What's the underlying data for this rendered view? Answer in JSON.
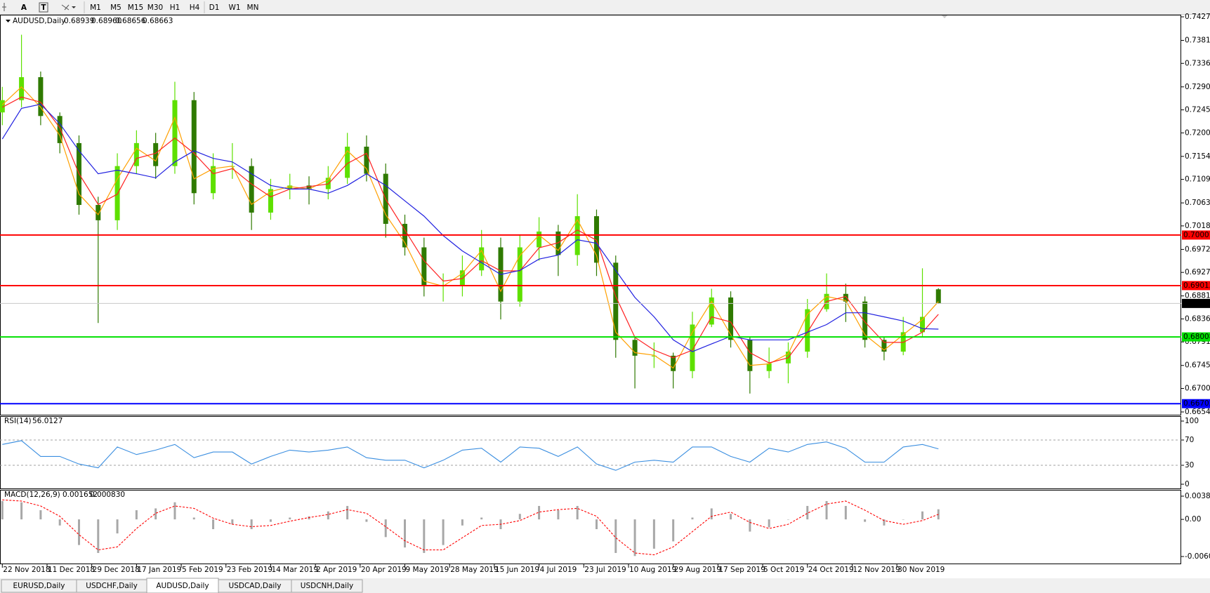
{
  "toolbar": {
    "tools": [
      "A",
      "T"
    ],
    "timeframes": [
      "M1",
      "M5",
      "M15",
      "M30",
      "H1",
      "H4",
      "D1",
      "W1",
      "MN"
    ]
  },
  "chart_data": [
    {
      "type": "candlestick",
      "title": "AUDUSD,Daily",
      "header_values": [
        "0.68939",
        "0.68960",
        "0.68656",
        "0.68663"
      ],
      "x": [
        0,
        6,
        12,
        18,
        24,
        30,
        36,
        42,
        48,
        54,
        60,
        66,
        72,
        78,
        84,
        90,
        96,
        102,
        108,
        114,
        120,
        126,
        132,
        138,
        144,
        150,
        156,
        162,
        168,
        174,
        180,
        186,
        192,
        198,
        204,
        210,
        216,
        222,
        228,
        234,
        240,
        246,
        252,
        258,
        264,
        270,
        276,
        282,
        288,
        293
      ],
      "xlim": [
        0,
        369
      ],
      "xticks": [
        {
          "value": 0,
          "label": "22 Nov 2018"
        },
        {
          "value": 14,
          "label": "11 Dec 2018"
        },
        {
          "value": 28,
          "label": "29 Dec 2018"
        },
        {
          "value": 42,
          "label": "17 Jan 2019"
        },
        {
          "value": 56,
          "label": "5 Feb 2019"
        },
        {
          "value": 70,
          "label": "23 Feb 2019"
        },
        {
          "value": 84,
          "label": "14 Mar 2019"
        },
        {
          "value": 98,
          "label": "2 Apr 2019"
        },
        {
          "value": 112,
          "label": "20 Apr 2019"
        },
        {
          "value": 126,
          "label": "9 May 2019"
        },
        {
          "value": 140,
          "label": "28 May 2019"
        },
        {
          "value": 154,
          "label": "15 Jun 2019"
        },
        {
          "value": 168,
          "label": "4 Jul 2019"
        },
        {
          "value": 182,
          "label": "23 Jul 2019"
        },
        {
          "value": 196,
          "label": "10 Aug 2019"
        },
        {
          "value": 210,
          "label": "29 Aug 2019"
        },
        {
          "value": 224,
          "label": "17 Sep 2019"
        },
        {
          "value": 238,
          "label": "5 Oct 2019"
        },
        {
          "value": 252,
          "label": "24 Oct 2019"
        },
        {
          "value": 266,
          "label": "12 Nov 2019"
        },
        {
          "value": 280,
          "label": "30 Nov 2019"
        }
      ],
      "open": [
        0.724,
        0.7264,
        0.7309,
        0.7233,
        0.718,
        0.7059,
        0.7029,
        0.7135,
        0.718,
        0.7135,
        0.7264,
        0.7082,
        0.7135,
        0.7135,
        0.7044,
        0.709,
        0.7097,
        0.709,
        0.7112,
        0.7173,
        0.712,
        0.7022,
        0.6976,
        0.6901,
        0.6901,
        0.6931,
        0.6976,
        0.687,
        0.6976,
        0.7007,
        0.6961,
        0.7037,
        0.6946,
        0.6795,
        0.6764,
        0.6764,
        0.6734,
        0.6825,
        0.6878,
        0.6795,
        0.6734,
        0.6749,
        0.6772,
        0.6855,
        0.6885,
        0.687,
        0.6795,
        0.6772,
        0.681,
        0.68939
      ],
      "high": [
        0.729,
        0.7392,
        0.732,
        0.724,
        0.7195,
        0.7075,
        0.716,
        0.7205,
        0.72,
        0.73,
        0.728,
        0.716,
        0.718,
        0.715,
        0.711,
        0.712,
        0.7115,
        0.7135,
        0.72,
        0.7195,
        0.714,
        0.704,
        0.6995,
        0.6925,
        0.696,
        0.701,
        0.6995,
        0.7,
        0.7035,
        0.702,
        0.708,
        0.705,
        0.696,
        0.68,
        0.679,
        0.677,
        0.685,
        0.6895,
        0.689,
        0.68,
        0.678,
        0.679,
        0.6875,
        0.6925,
        0.6905,
        0.688,
        0.68,
        0.684,
        0.6935,
        0.6896
      ],
      "low": [
        0.7215,
        0.725,
        0.7215,
        0.716,
        0.704,
        0.6828,
        0.701,
        0.712,
        0.711,
        0.712,
        0.706,
        0.707,
        0.711,
        0.701,
        0.703,
        0.707,
        0.706,
        0.707,
        0.71,
        0.7105,
        0.6995,
        0.696,
        0.688,
        0.687,
        0.688,
        0.692,
        0.6835,
        0.686,
        0.695,
        0.692,
        0.694,
        0.692,
        0.676,
        0.67,
        0.674,
        0.67,
        0.672,
        0.682,
        0.678,
        0.669,
        0.672,
        0.671,
        0.676,
        0.685,
        0.683,
        0.678,
        0.6755,
        0.6765,
        0.68,
        0.68656
      ],
      "close": [
        0.7264,
        0.7309,
        0.7233,
        0.718,
        0.7059,
        0.7029,
        0.7135,
        0.718,
        0.7135,
        0.7264,
        0.7082,
        0.7135,
        0.7135,
        0.7044,
        0.709,
        0.7097,
        0.709,
        0.7112,
        0.7173,
        0.712,
        0.7022,
        0.6976,
        0.6901,
        0.6901,
        0.6931,
        0.6976,
        0.687,
        0.6976,
        0.7007,
        0.6961,
        0.7037,
        0.6946,
        0.6795,
        0.6764,
        0.6764,
        0.6734,
        0.6825,
        0.6878,
        0.6795,
        0.6734,
        0.6749,
        0.6772,
        0.6855,
        0.6885,
        0.687,
        0.6795,
        0.6772,
        0.681,
        0.684,
        0.68663
      ],
      "up_color": "#5ee000",
      "down_color": "#2f7a00",
      "series": [
        {
          "color": "#ffa000",
          "values": [
            0.7255,
            0.729,
            0.725,
            0.7195,
            0.708,
            0.704,
            0.711,
            0.717,
            0.7145,
            0.723,
            0.711,
            0.713,
            0.7135,
            0.706,
            0.7085,
            0.7095,
            0.709,
            0.7108,
            0.7165,
            0.713,
            0.704,
            0.6985,
            0.691,
            0.69,
            0.6925,
            0.697,
            0.689,
            0.696,
            0.7,
            0.697,
            0.703,
            0.696,
            0.681,
            0.677,
            0.6765,
            0.674,
            0.681,
            0.687,
            0.6805,
            0.6745,
            0.6748,
            0.6768,
            0.6845,
            0.688,
            0.6872,
            0.6805,
            0.6775,
            0.6805,
            0.6835,
            0.687
          ]
        },
        {
          "color": "#ff2020",
          "values": [
            0.725,
            0.727,
            0.726,
            0.721,
            0.712,
            0.706,
            0.708,
            0.715,
            0.716,
            0.719,
            0.716,
            0.712,
            0.713,
            0.71,
            0.7075,
            0.709,
            0.7095,
            0.71,
            0.714,
            0.716,
            0.707,
            0.701,
            0.695,
            0.691,
            0.6915,
            0.695,
            0.693,
            0.693,
            0.6975,
            0.6985,
            0.701,
            0.699,
            0.688,
            0.68,
            0.6775,
            0.676,
            0.6775,
            0.684,
            0.683,
            0.677,
            0.675,
            0.676,
            0.681,
            0.687,
            0.688,
            0.683,
            0.679,
            0.679,
            0.681,
            0.6845
          ]
        },
        {
          "color": "#2020e0",
          "values": [
            0.7188,
            0.7248,
            0.7256,
            0.7218,
            0.7165,
            0.712,
            0.7127,
            0.712,
            0.7112,
            0.7143,
            0.7165,
            0.715,
            0.7143,
            0.712,
            0.7097,
            0.709,
            0.709,
            0.7082,
            0.7097,
            0.712,
            0.7097,
            0.7067,
            0.7037,
            0.6999,
            0.6969,
            0.6946,
            0.6923,
            0.6931,
            0.6953,
            0.6961,
            0.6991,
            0.6984,
            0.6931,
            0.6878,
            0.684,
            0.6795,
            0.6772,
            0.6787,
            0.6802,
            0.6795,
            0.6795,
            0.6795,
            0.681,
            0.6825,
            0.6848,
            0.6848,
            0.684,
            0.6832,
            0.6817,
            0.6816
          ]
        }
      ],
      "ylim": [
        0.6654,
        0.7427
      ],
      "yticks": [
        {
          "value": 0.7427,
          "label": "0.74270"
        },
        {
          "value": 0.7381,
          "label": "0.73810"
        },
        {
          "value": 0.7336,
          "label": "0.73360"
        },
        {
          "value": 0.729,
          "label": "0.72900"
        },
        {
          "value": 0.7245,
          "label": "0.72450"
        },
        {
          "value": 0.72,
          "label": "0.72000"
        },
        {
          "value": 0.7154,
          "label": "0.71540"
        },
        {
          "value": 0.7109,
          "label": "0.71090"
        },
        {
          "value": 0.7063,
          "label": "0.70630"
        },
        {
          "value": 0.7018,
          "label": "0.70180"
        },
        {
          "value": 0.6972,
          "label": "0.69720"
        },
        {
          "value": 0.6927,
          "label": "0.69270"
        },
        {
          "value": 0.6881,
          "label": "0.68810"
        },
        {
          "value": 0.6836,
          "label": "0.68360"
        },
        {
          "value": 0.6791,
          "label": "0.67910"
        },
        {
          "value": 0.6745,
          "label": "0.67450"
        },
        {
          "value": 0.67,
          "label": "0.67000"
        },
        {
          "value": 0.6654,
          "label": "0.66540"
        }
      ],
      "grid": false,
      "hlines": [
        {
          "value": 0.70001,
          "color": "#ff0000",
          "label_color": "#ff0000"
        },
        {
          "value": 0.69012,
          "color": "#ff0000",
          "label_color": "#ff0000"
        },
        {
          "value": 0.68663,
          "color": "#c8c8c8",
          "label_color": "#000000"
        },
        {
          "value": 0.68008,
          "color": "#00e000",
          "label_color": "#00e000"
        },
        {
          "value": 0.66702,
          "color": "#0000ff",
          "label_color": "#0000ff"
        }
      ]
    },
    {
      "type": "line",
      "title": "RSI(14)",
      "color": "#3a8ee0",
      "values": [
        63,
        69,
        44,
        44,
        32,
        26,
        59,
        47,
        54,
        63,
        42,
        51,
        51,
        32,
        44,
        54,
        51,
        54,
        59,
        42,
        38,
        38,
        26,
        38,
        54,
        57,
        35,
        59,
        57,
        44,
        59,
        32,
        22,
        35,
        38,
        35,
        59,
        59,
        44,
        35,
        57,
        51,
        63,
        67,
        57,
        35,
        35,
        59,
        63,
        56.0127
      ],
      "ylim": [
        0,
        100
      ],
      "yticks": [
        0,
        30,
        70,
        100
      ]
    },
    {
      "type": "macd",
      "title": "MACD(12,26,9)",
      "title_values": [
        "0.001652",
        "0.000830"
      ],
      "hist_color": "#a8a8a8",
      "signal_color": "#ff0000",
      "values": [
        0.003,
        0.0028,
        0.0015,
        -0.001,
        -0.0042,
        -0.0055,
        -0.0023,
        0.0015,
        0.0018,
        0.0028,
        0.0003,
        -0.0016,
        -0.0008,
        -0.0016,
        -0.0004,
        0.0003,
        0.0005,
        0.0013,
        0.0022,
        -0.0004,
        -0.0029,
        -0.0046,
        -0.0055,
        -0.0042,
        -0.001,
        0.0003,
        -0.0016,
        0.0009,
        0.0022,
        0.0015,
        0.0022,
        -0.0016,
        -0.0055,
        -0.006,
        -0.0048,
        -0.0036,
        0.0003,
        0.0018,
        0.0009,
        -0.002,
        -0.0013,
        0.0,
        0.0022,
        0.003,
        0.0022,
        -0.0004,
        -0.001,
        0.0,
        0.0013,
        0.001652
      ],
      "signal": [
        0.0032,
        0.003,
        0.0022,
        0.0005,
        -0.0025,
        -0.005,
        -0.0045,
        -0.0015,
        0.001,
        0.0022,
        0.0018,
        0.0002,
        -0.0008,
        -0.0012,
        -0.001,
        -0.0003,
        0.0003,
        0.0008,
        0.0016,
        0.001,
        -0.0012,
        -0.0035,
        -0.005,
        -0.005,
        -0.003,
        -0.001,
        -0.0008,
        -0.0002,
        0.0012,
        0.0016,
        0.0018,
        0.0005,
        -0.003,
        -0.0055,
        -0.0058,
        -0.0045,
        -0.002,
        0.0005,
        0.0012,
        -0.0005,
        -0.0015,
        -0.0008,
        0.001,
        0.0025,
        0.003,
        0.0015,
        -0.0002,
        -0.0008,
        -0.0002,
        0.00083
      ],
      "ylim": [
        -0.00608,
        0.003804
      ],
      "yticks": [
        0.003804,
        {
          "value": 0,
          "label": "0.00"
        },
        -0.00608
      ]
    }
  ],
  "tabs": [
    "EURUSD,Daily",
    "USDCHF,Daily",
    "AUDUSD,Daily",
    "USDCAD,Daily",
    "USDCNH,Daily"
  ],
  "active_tab": 2
}
